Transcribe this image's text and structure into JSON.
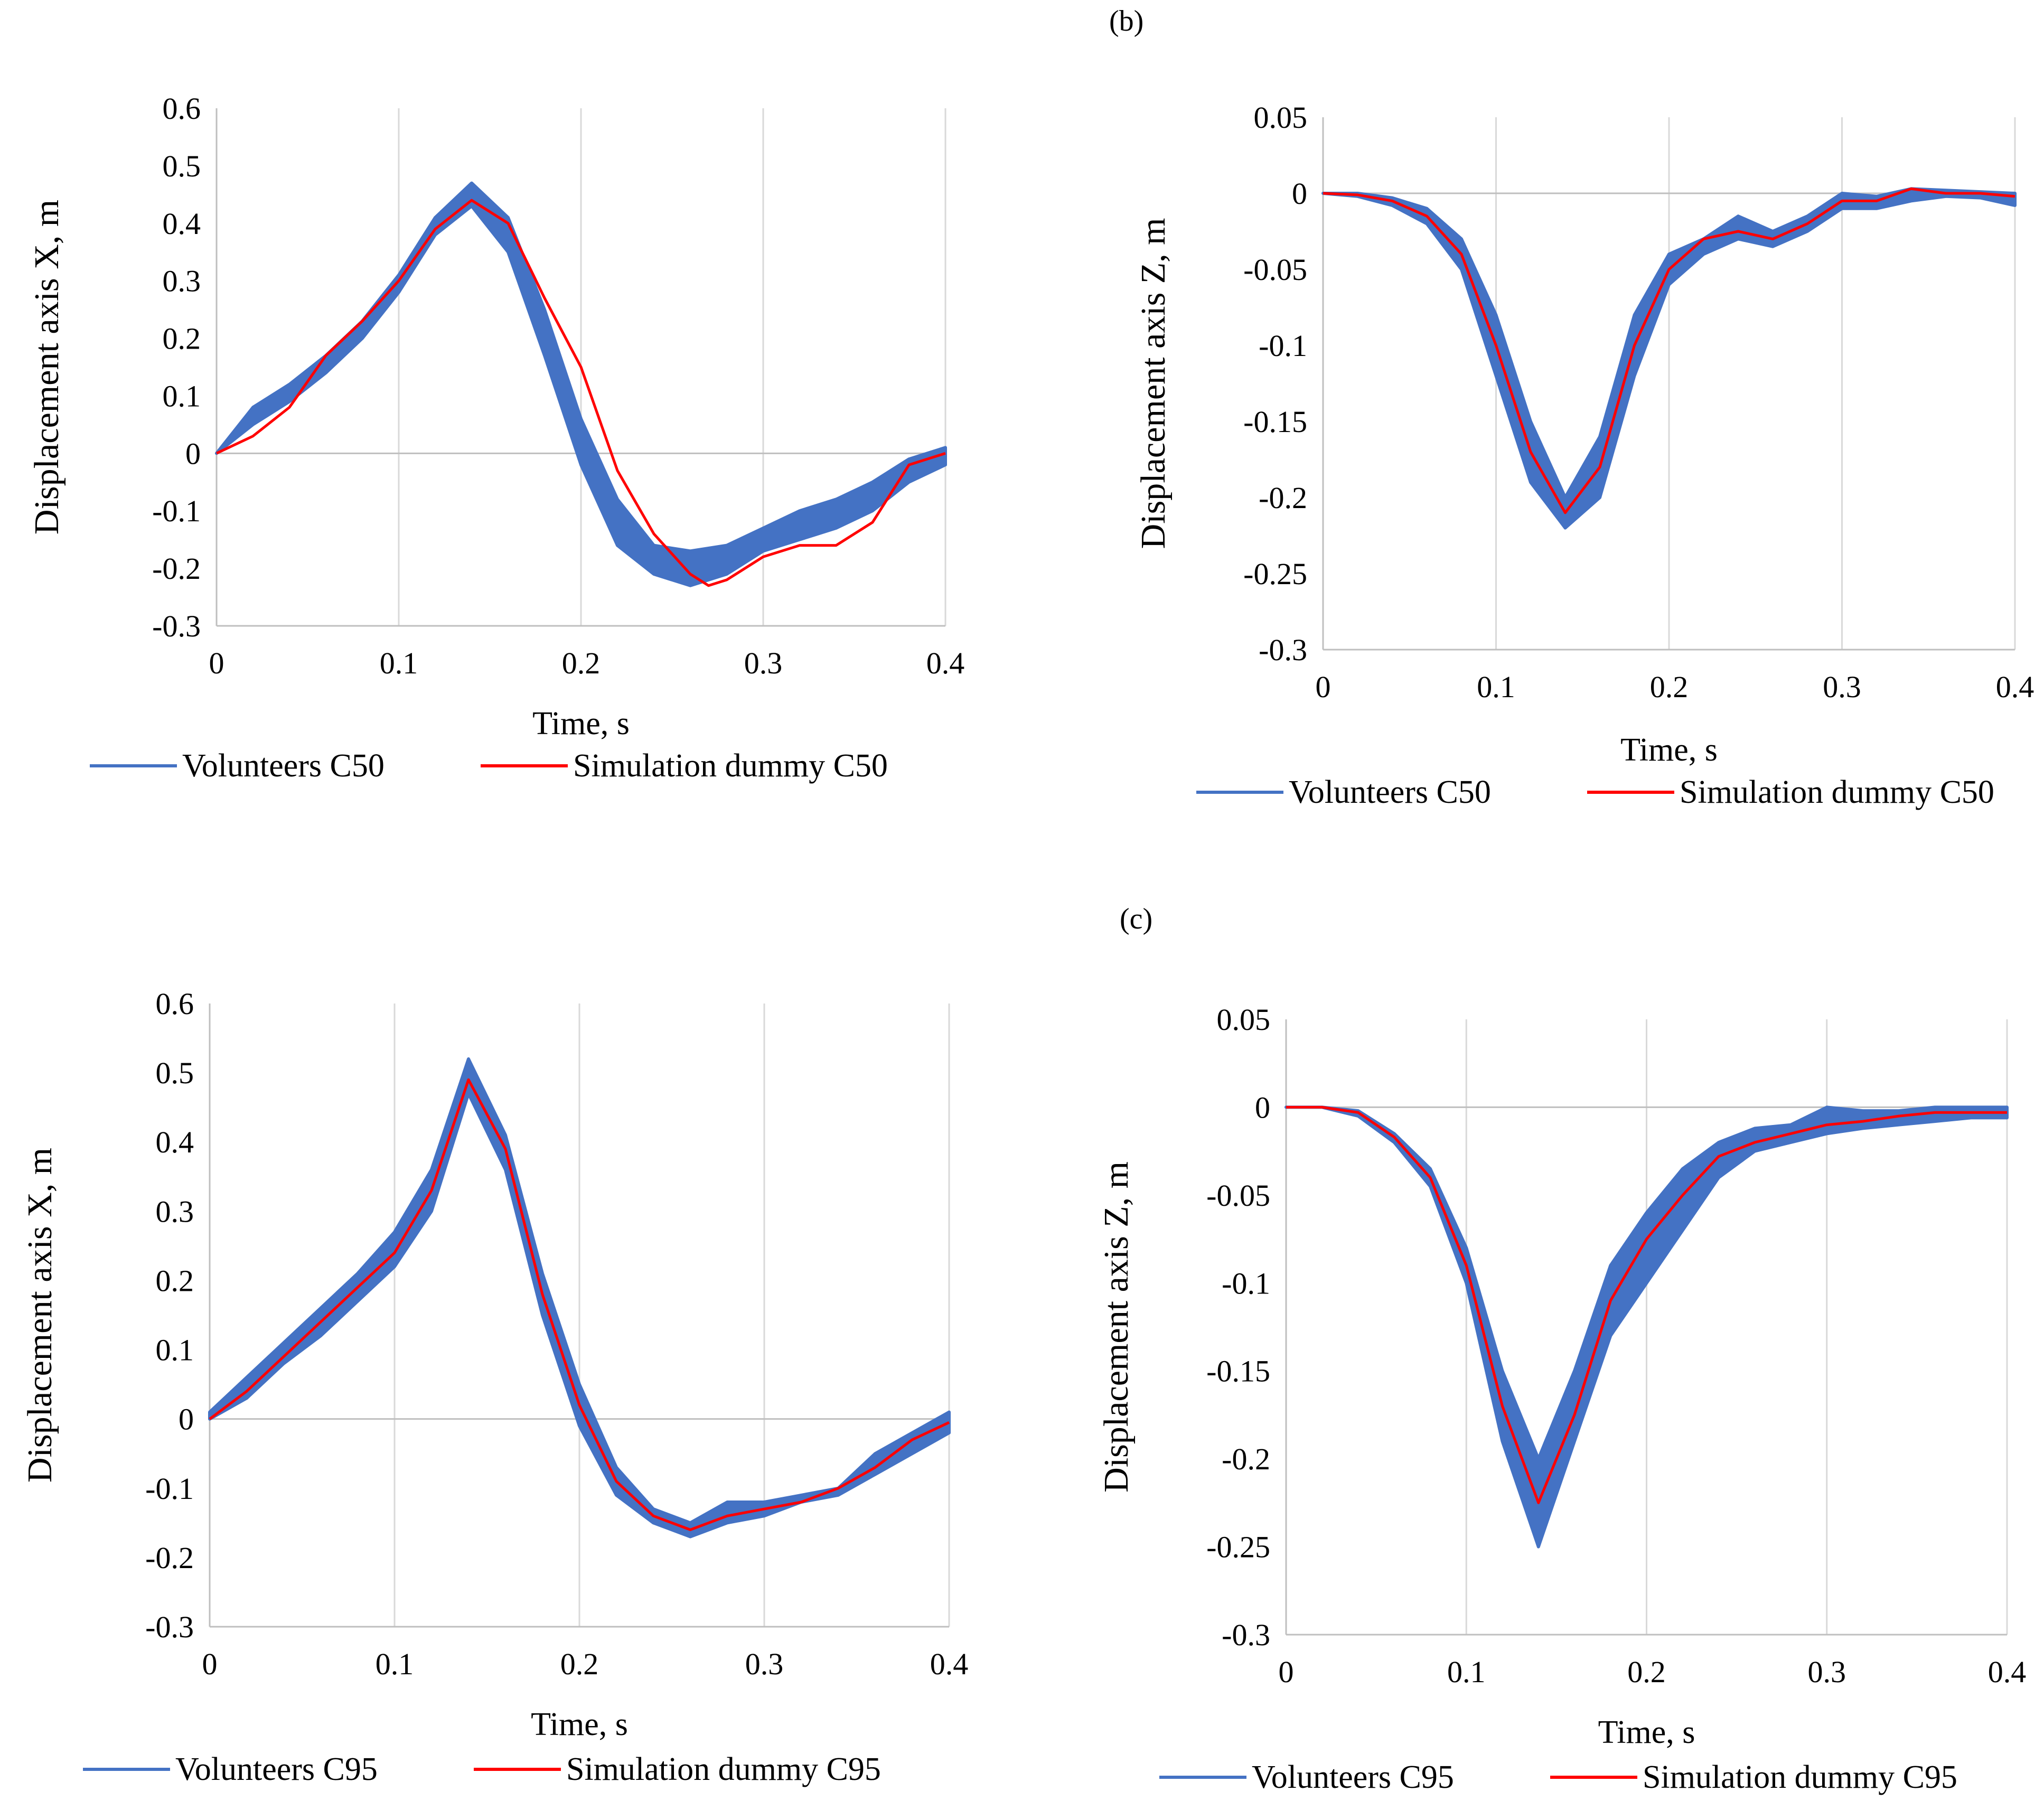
{
  "panel_labels": {
    "b": "(b)",
    "c": "(c)"
  },
  "colors": {
    "volunteers": "#4472C4",
    "simulation": "#FF0000",
    "grid": "#D9D9D9",
    "axis": "#BFBFBF",
    "text": "#000000"
  },
  "chart_data": [
    {
      "id": "top-left",
      "type": "area",
      "title": "",
      "xlabel": "Time,  s",
      "ylabel": "Displacement axis X, m",
      "xlim": [
        0,
        0.4
      ],
      "ylim": [
        -0.3,
        0.6
      ],
      "xticks": [
        0,
        0.1,
        0.2,
        0.3,
        0.4
      ],
      "xtick_labels": [
        "0",
        "0.1",
        "0.2",
        "0.3",
        "0.4"
      ],
      "yticks": [
        -0.3,
        -0.2,
        -0.1,
        0,
        0.1,
        0.2,
        0.3,
        0.4,
        0.5,
        0.6
      ],
      "ytick_labels": [
        "-0.3",
        "-0.2",
        "-0.1",
        "0",
        "0.1",
        "0.2",
        "0.3",
        "0.4",
        "0.5",
        "0.6"
      ],
      "grid": "vertical",
      "legend": [
        "Volunteers C50",
        "Simulation dummy C50"
      ],
      "series": [
        {
          "name": "Volunteers C50",
          "kind": "band",
          "x": [
            0,
            0.02,
            0.04,
            0.06,
            0.08,
            0.1,
            0.12,
            0.14,
            0.16,
            0.18,
            0.2,
            0.22,
            0.24,
            0.26,
            0.28,
            0.3,
            0.32,
            0.34,
            0.36,
            0.38,
            0.4
          ],
          "lower": [
            0,
            0.05,
            0.09,
            0.14,
            0.2,
            0.28,
            0.38,
            0.43,
            0.35,
            0.17,
            -0.02,
            -0.16,
            -0.21,
            -0.23,
            -0.21,
            -0.17,
            -0.15,
            -0.13,
            -0.1,
            -0.05,
            -0.02
          ],
          "upper": [
            0,
            0.08,
            0.12,
            0.17,
            0.23,
            0.31,
            0.41,
            0.47,
            0.41,
            0.25,
            0.06,
            -0.08,
            -0.16,
            -0.17,
            -0.16,
            -0.13,
            -0.1,
            -0.08,
            -0.05,
            -0.01,
            0.01
          ]
        },
        {
          "name": "Simulation dummy C50",
          "kind": "line",
          "x": [
            0,
            0.02,
            0.04,
            0.06,
            0.08,
            0.1,
            0.12,
            0.14,
            0.16,
            0.18,
            0.2,
            0.22,
            0.24,
            0.26,
            0.27,
            0.28,
            0.3,
            0.32,
            0.34,
            0.36,
            0.38,
            0.4
          ],
          "values": [
            0,
            0.03,
            0.08,
            0.17,
            0.23,
            0.3,
            0.39,
            0.44,
            0.4,
            0.27,
            0.15,
            -0.03,
            -0.14,
            -0.21,
            -0.23,
            -0.22,
            -0.18,
            -0.16,
            -0.16,
            -0.12,
            -0.02,
            0
          ]
        }
      ]
    },
    {
      "id": "top-right",
      "type": "area",
      "title": "",
      "xlabel": "Time,  s",
      "ylabel": "Displacement axis Z, m",
      "xlim": [
        0,
        0.4
      ],
      "ylim": [
        -0.3,
        0.05
      ],
      "xticks": [
        0,
        0.1,
        0.2,
        0.3,
        0.4
      ],
      "xtick_labels": [
        "0",
        "0.1",
        "0.2",
        "0.3",
        "0.4"
      ],
      "yticks": [
        -0.3,
        -0.25,
        -0.2,
        -0.15,
        -0.1,
        -0.05,
        0,
        0.05
      ],
      "ytick_labels": [
        "-0.3",
        "-0.25",
        "-0.2",
        "-0.15",
        "-0.1",
        "-0.05",
        "0",
        "0.05"
      ],
      "grid": "vertical",
      "legend": [
        "Volunteers C50",
        "Simulation dummy C50"
      ],
      "series": [
        {
          "name": "Volunteers C50",
          "kind": "band",
          "x": [
            0,
            0.02,
            0.04,
            0.06,
            0.08,
            0.1,
            0.12,
            0.14,
            0.16,
            0.18,
            0.2,
            0.22,
            0.24,
            0.26,
            0.28,
            0.3,
            0.32,
            0.34,
            0.36,
            0.38,
            0.4
          ],
          "lower": [
            0,
            -0.002,
            -0.008,
            -0.02,
            -0.05,
            -0.12,
            -0.19,
            -0.22,
            -0.2,
            -0.12,
            -0.06,
            -0.04,
            -0.03,
            -0.035,
            -0.025,
            -0.01,
            -0.01,
            -0.005,
            -0.002,
            -0.003,
            -0.008
          ],
          "upper": [
            0,
            0,
            -0.003,
            -0.01,
            -0.03,
            -0.08,
            -0.15,
            -0.2,
            -0.16,
            -0.08,
            -0.04,
            -0.03,
            -0.015,
            -0.025,
            -0.015,
            0,
            -0.002,
            0.003,
            0.002,
            0.001,
            0
          ]
        },
        {
          "name": "Simulation dummy C50",
          "kind": "line",
          "x": [
            0,
            0.02,
            0.04,
            0.06,
            0.08,
            0.1,
            0.12,
            0.14,
            0.16,
            0.18,
            0.2,
            0.22,
            0.24,
            0.26,
            0.28,
            0.3,
            0.32,
            0.34,
            0.36,
            0.38,
            0.4
          ],
          "values": [
            0,
            -0.001,
            -0.005,
            -0.015,
            -0.04,
            -0.1,
            -0.17,
            -0.21,
            -0.18,
            -0.1,
            -0.05,
            -0.03,
            -0.025,
            -0.03,
            -0.02,
            -0.005,
            -0.005,
            0.003,
            0,
            0,
            -0.002
          ]
        }
      ]
    },
    {
      "id": "bottom-left",
      "type": "area",
      "title": "",
      "xlabel": "Time,  s",
      "ylabel": "Displacement axis X, m",
      "xlim": [
        0,
        0.4
      ],
      "ylim": [
        -0.3,
        0.6
      ],
      "xticks": [
        0,
        0.1,
        0.2,
        0.3,
        0.4
      ],
      "xtick_labels": [
        "0",
        "0.1",
        "0.2",
        "0.3",
        "0.4"
      ],
      "yticks": [
        -0.3,
        -0.2,
        -0.1,
        0,
        0.1,
        0.2,
        0.3,
        0.4,
        0.5,
        0.6
      ],
      "ytick_labels": [
        "-0.3",
        "-0.2",
        "-0.1",
        "0",
        "0.1",
        "0.2",
        "0.3",
        "0.4",
        "0.5",
        "0.6"
      ],
      "grid": "vertical",
      "legend": [
        "Volunteers C95",
        "Simulation dummy C95"
      ],
      "series": [
        {
          "name": "Volunteers C95",
          "kind": "band",
          "x": [
            0,
            0.02,
            0.04,
            0.06,
            0.08,
            0.1,
            0.12,
            0.14,
            0.16,
            0.18,
            0.2,
            0.22,
            0.24,
            0.26,
            0.28,
            0.3,
            0.32,
            0.34,
            0.36,
            0.38,
            0.4
          ],
          "lower": [
            0,
            0.03,
            0.08,
            0.12,
            0.17,
            0.22,
            0.3,
            0.47,
            0.36,
            0.15,
            -0.01,
            -0.11,
            -0.15,
            -0.17,
            -0.15,
            -0.14,
            -0.12,
            -0.11,
            -0.08,
            -0.05,
            -0.02
          ],
          "upper": [
            0.01,
            0.06,
            0.11,
            0.16,
            0.21,
            0.27,
            0.36,
            0.52,
            0.41,
            0.21,
            0.05,
            -0.07,
            -0.13,
            -0.15,
            -0.12,
            -0.12,
            -0.11,
            -0.1,
            -0.05,
            -0.02,
            0.01
          ]
        },
        {
          "name": "Simulation dummy C95",
          "kind": "line",
          "x": [
            0,
            0.02,
            0.04,
            0.06,
            0.08,
            0.1,
            0.12,
            0.14,
            0.16,
            0.18,
            0.2,
            0.22,
            0.24,
            0.26,
            0.28,
            0.3,
            0.32,
            0.34,
            0.36,
            0.38,
            0.4
          ],
          "values": [
            0,
            0.04,
            0.09,
            0.14,
            0.19,
            0.24,
            0.33,
            0.49,
            0.39,
            0.18,
            0.02,
            -0.09,
            -0.14,
            -0.16,
            -0.14,
            -0.13,
            -0.12,
            -0.1,
            -0.07,
            -0.03,
            -0.005
          ]
        }
      ]
    },
    {
      "id": "bottom-right",
      "type": "area",
      "title": "",
      "xlabel": "Time,  s",
      "ylabel": "Displacement axis Z, m",
      "xlim": [
        0,
        0.4
      ],
      "ylim": [
        -0.3,
        0.05
      ],
      "xticks": [
        0,
        0.1,
        0.2,
        0.3,
        0.4
      ],
      "xtick_labels": [
        "0",
        "0.1",
        "0.2",
        "0.3",
        "0.4"
      ],
      "yticks": [
        -0.3,
        -0.25,
        -0.2,
        -0.15,
        -0.1,
        -0.05,
        0,
        0.05
      ],
      "ytick_labels": [
        "-0.3",
        "-0.25",
        "-0.2",
        "-0.15",
        "-0.1",
        "-0.05",
        "0",
        "0.05"
      ],
      "grid": "vertical",
      "legend": [
        "Volunteers C95",
        "Simulation dummy C95"
      ],
      "series": [
        {
          "name": "Volunteers C95",
          "kind": "band",
          "x": [
            0,
            0.02,
            0.04,
            0.06,
            0.08,
            0.1,
            0.12,
            0.14,
            0.16,
            0.18,
            0.2,
            0.22,
            0.24,
            0.26,
            0.28,
            0.3,
            0.32,
            0.34,
            0.36,
            0.38,
            0.4
          ],
          "lower": [
            0,
            0,
            -0.005,
            -0.02,
            -0.045,
            -0.1,
            -0.19,
            -0.25,
            -0.19,
            -0.13,
            -0.1,
            -0.07,
            -0.04,
            -0.025,
            -0.02,
            -0.015,
            -0.012,
            -0.01,
            -0.008,
            -0.006,
            -0.006
          ],
          "upper": [
            0,
            0,
            -0.002,
            -0.015,
            -0.035,
            -0.08,
            -0.15,
            -0.2,
            -0.15,
            -0.09,
            -0.06,
            -0.035,
            -0.02,
            -0.012,
            -0.01,
            0,
            -0.002,
            -0.002,
            0,
            0,
            0
          ]
        },
        {
          "name": "Simulation dummy C95",
          "kind": "line",
          "x": [
            0,
            0.02,
            0.04,
            0.06,
            0.08,
            0.1,
            0.12,
            0.14,
            0.16,
            0.18,
            0.2,
            0.22,
            0.24,
            0.26,
            0.28,
            0.3,
            0.32,
            0.34,
            0.36,
            0.38,
            0.4
          ],
          "values": [
            0,
            0,
            -0.003,
            -0.017,
            -0.04,
            -0.09,
            -0.17,
            -0.225,
            -0.175,
            -0.11,
            -0.075,
            -0.05,
            -0.028,
            -0.02,
            -0.015,
            -0.01,
            -0.008,
            -0.005,
            -0.003,
            -0.003,
            -0.003
          ]
        }
      ]
    }
  ]
}
